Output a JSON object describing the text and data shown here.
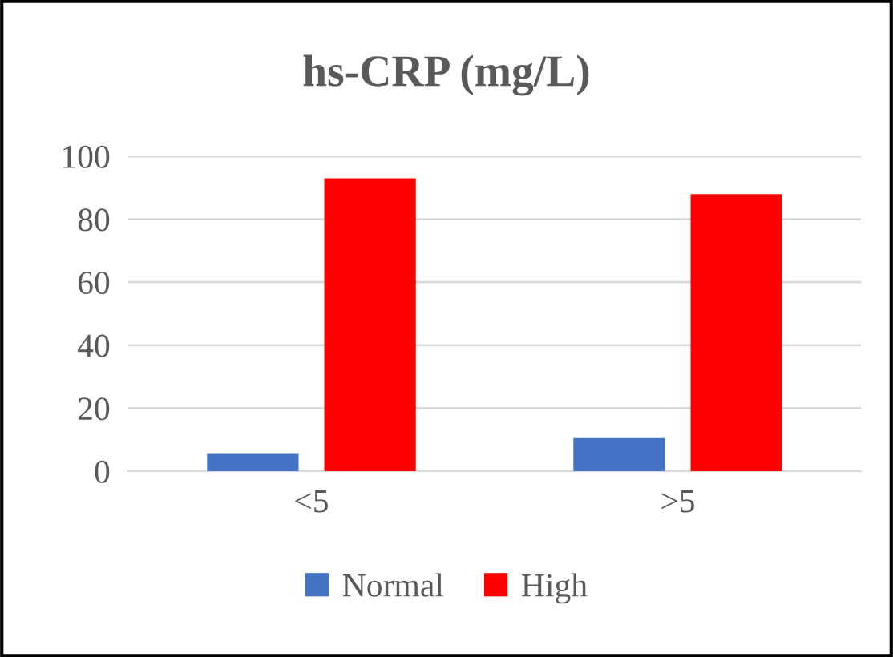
{
  "chart_data": {
    "type": "bar",
    "title": "hs-CRP (mg/L)",
    "categories": [
      "<5",
      ">5"
    ],
    "series": [
      {
        "name": "Normal",
        "color": "#4472c4",
        "values": [
          5.5,
          10.5
        ]
      },
      {
        "name": "High",
        "color": "#ff0000",
        "values": [
          93,
          88
        ]
      }
    ],
    "ylim": [
      0,
      100
    ],
    "yticks": [
      0,
      20,
      40,
      60,
      80,
      100
    ],
    "grid": "y",
    "legend": "bottom"
  }
}
